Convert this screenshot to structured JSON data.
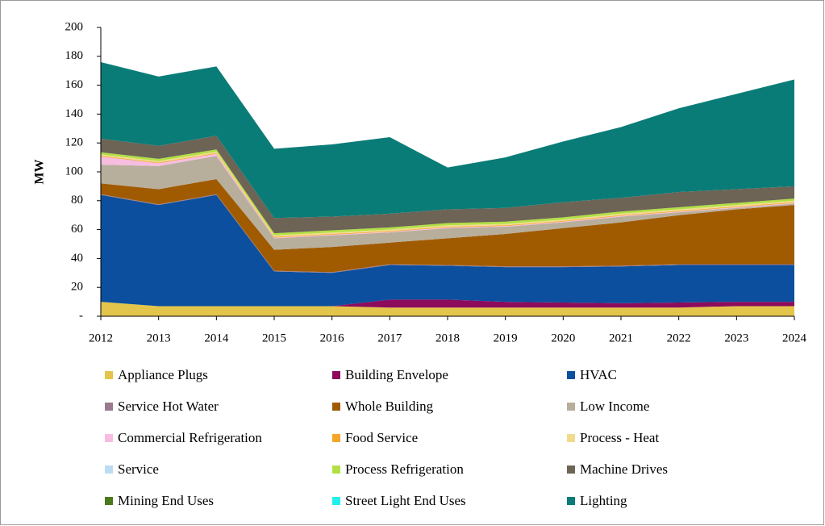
{
  "chart_data": {
    "type": "stacked_area",
    "y_label": "MW",
    "categories": [
      "2012",
      "2013",
      "2014",
      "2015",
      "2016",
      "2017",
      "2018",
      "2019",
      "2020",
      "2021",
      "2022",
      "2023",
      "2024"
    ],
    "ylim": [
      0,
      200
    ],
    "yticks": [
      {
        "value": 0,
        "label": "-"
      },
      20,
      40,
      60,
      80,
      100,
      120,
      140,
      160,
      180,
      200
    ],
    "series": [
      {
        "name": "Appliance Plugs",
        "color": "#e3c54b",
        "values": [
          10,
          7,
          7,
          7,
          7,
          6,
          6,
          6,
          6,
          6,
          6,
          7,
          7
        ]
      },
      {
        "name": "Building Envelope",
        "color": "#8c0b5c",
        "values": [
          0,
          0,
          0,
          0,
          0,
          5.5,
          5.5,
          4,
          3.5,
          3,
          3.5,
          3,
          3
        ]
      },
      {
        "name": "HVAC",
        "color": "#0b4f9e",
        "values": [
          74,
          70,
          77,
          24,
          23,
          24,
          23.5,
          24,
          24.5,
          25.5,
          26,
          25.5,
          25.5
        ]
      },
      {
        "name": "Service Hot Water",
        "color": "#9a7a8c",
        "values": [
          0.5,
          0.5,
          0.5,
          0.5,
          0.5,
          0.5,
          0.5,
          0.5,
          0.5,
          0.5,
          0.5,
          0.5,
          0.5
        ]
      },
      {
        "name": "Whole Building",
        "color": "#a05b00",
        "values": [
          7.5,
          10.5,
          10.5,
          14.5,
          17.5,
          15,
          18.5,
          22.5,
          26.5,
          30,
          34,
          38,
          41
        ]
      },
      {
        "name": "Low Income",
        "color": "#b8ae9c",
        "values": [
          13,
          16,
          16,
          8,
          8,
          7,
          7,
          5,
          4,
          4,
          2,
          1,
          1
        ]
      },
      {
        "name": "Commercial Refrigeration",
        "color": "#f6bde0",
        "values": [
          5.5,
          2,
          1.5,
          0.5,
          0.5,
          0.5,
          0.5,
          0.5,
          0.5,
          0.5,
          0.5,
          0.5,
          0.5
        ]
      },
      {
        "name": "Food Service",
        "color": "#f5a52a",
        "values": [
          0.5,
          0.5,
          0.5,
          0.5,
          0.5,
          0.5,
          0.5,
          0.5,
          0.5,
          0.5,
          0.5,
          0.5,
          0.5
        ]
      },
      {
        "name": "Process - Heat",
        "color": "#f0dc8c",
        "values": [
          1,
          1,
          1,
          1,
          1,
          1,
          1,
          1,
          1,
          1,
          1,
          1,
          1
        ]
      },
      {
        "name": "Service",
        "color": "#bcdcf2",
        "values": [
          0,
          0,
          0,
          0,
          0,
          0,
          0,
          0,
          0,
          0,
          0,
          0,
          0
        ]
      },
      {
        "name": "Process Refrigeration",
        "color": "#b2e044",
        "values": [
          1.5,
          1.5,
          1.5,
          1.5,
          1.5,
          1.5,
          1.5,
          1.5,
          1.5,
          1.5,
          1.5,
          1.5,
          1.5
        ]
      },
      {
        "name": "Machine Drives",
        "color": "#6d6456",
        "values": [
          9.5,
          9,
          9.5,
          10.5,
          9.5,
          9.5,
          9.5,
          9.5,
          10.5,
          9.5,
          10.5,
          9.5,
          8.5
        ]
      },
      {
        "name": "Mining End Uses",
        "color": "#4a7a1a",
        "values": [
          0,
          0,
          0,
          0,
          0,
          0,
          0,
          0,
          0,
          0,
          0,
          0,
          0
        ]
      },
      {
        "name": "Street Light End Uses",
        "color": "#22eef0",
        "values": [
          0,
          0,
          0,
          0,
          0,
          0,
          0,
          0,
          0,
          0,
          0,
          0,
          0
        ]
      },
      {
        "name": "Lighting",
        "color": "#0a7c77",
        "values": [
          53,
          48,
          48,
          48,
          50,
          53,
          29,
          35,
          42,
          49,
          58,
          66,
          74
        ]
      }
    ]
  }
}
